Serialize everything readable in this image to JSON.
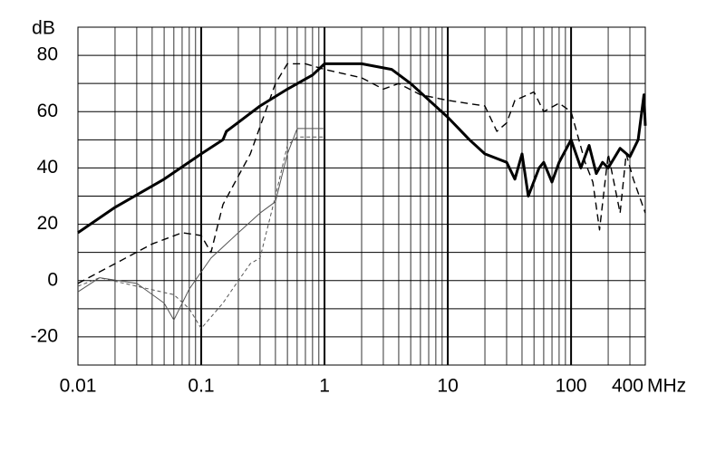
{
  "chart_data": {
    "type": "line",
    "y_label": "dB",
    "x_label": "MHz",
    "xlog": true,
    "grid": true,
    "xlim": [
      0.01,
      400
    ],
    "ylim": [
      -30,
      90
    ],
    "xticks": [
      0.01,
      0.1,
      1,
      10,
      100,
      400
    ],
    "minor_xticks": [
      0.02,
      0.03,
      0.04,
      0.05,
      0.06,
      0.07,
      0.08,
      0.09,
      0.2,
      0.3,
      0.4,
      0.5,
      0.6,
      0.7,
      0.8,
      0.9,
      2,
      3,
      4,
      5,
      6,
      7,
      8,
      9,
      20,
      30,
      40,
      50,
      60,
      70,
      80,
      90,
      200,
      300
    ],
    "yticks": [
      -20,
      0,
      20,
      40,
      60,
      80
    ],
    "minor_yticks": [
      -30,
      -10,
      10,
      30,
      50,
      70,
      90
    ],
    "series": [
      {
        "color": "#000000",
        "width": 3,
        "dash": "none",
        "x": [
          0.01,
          0.02,
          0.05,
          0.1,
          0.15,
          0.16,
          0.3,
          0.5,
          0.8,
          1,
          2,
          3.5,
          5,
          10,
          15,
          20,
          30,
          35,
          40,
          45,
          55,
          60,
          70,
          80,
          100,
          120,
          140,
          160,
          180,
          200,
          250,
          300,
          350,
          390,
          400
        ],
        "values": [
          17,
          26,
          36,
          45,
          50,
          53,
          62,
          68,
          73,
          77,
          77,
          75,
          70,
          58,
          50,
          45,
          42,
          36,
          45,
          30,
          40,
          42,
          35,
          42,
          50,
          40,
          48,
          38,
          42,
          40,
          47,
          44,
          50,
          66,
          55
        ]
      },
      {
        "color": "#000000",
        "width": 1.4,
        "dash": "8 5",
        "x": [
          0.01,
          0.02,
          0.04,
          0.07,
          0.1,
          0.12,
          0.15,
          0.25,
          0.4,
          0.5,
          0.7,
          1,
          2,
          3,
          4,
          6,
          10,
          20,
          25,
          30,
          35,
          50,
          60,
          80,
          100,
          130,
          150,
          170,
          200,
          250,
          280,
          320,
          400
        ],
        "values": [
          -1,
          6,
          13,
          17,
          16,
          10,
          27,
          45,
          70,
          77,
          77,
          75,
          72,
          68,
          70,
          66,
          64,
          62,
          53,
          56,
          64,
          67,
          60,
          63,
          60,
          42,
          35,
          18,
          45,
          24,
          45,
          36,
          24
        ]
      },
      {
        "color": "#555555",
        "width": 1,
        "dash": "none",
        "x": [
          0.01,
          0.015,
          0.03,
          0.05,
          0.06,
          0.08,
          0.12,
          0.2,
          0.3,
          0.4,
          0.5,
          0.6,
          1
        ],
        "values": [
          -4,
          1,
          -1,
          -8,
          -14,
          -3,
          8,
          17,
          24,
          28,
          45,
          54,
          54
        ]
      },
      {
        "color": "#555555",
        "width": 1,
        "dash": "4 3",
        "x": [
          0.01,
          0.015,
          0.03,
          0.06,
          0.08,
          0.1,
          0.15,
          0.2,
          0.25,
          0.3,
          0.4,
          0.5,
          0.6,
          1
        ],
        "values": [
          -2,
          1,
          -2,
          -5,
          -10,
          -17,
          -8,
          0,
          6,
          8,
          30,
          48,
          51,
          51
        ]
      }
    ]
  }
}
